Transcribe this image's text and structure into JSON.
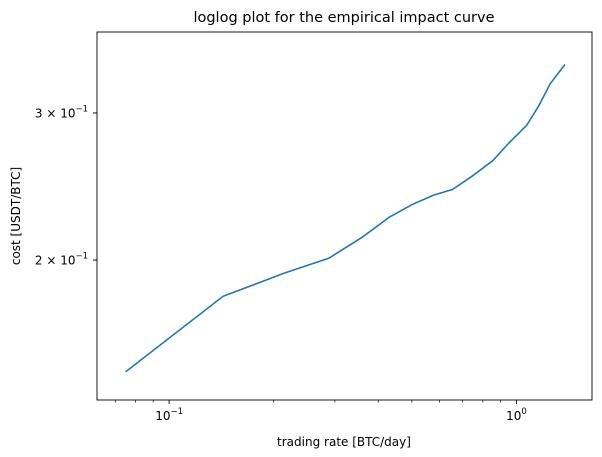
{
  "chart_data": {
    "type": "line",
    "title": "loglog plot for the empirical impact curve",
    "xlabel": "trading rate [BTC/day]",
    "ylabel": "cost [USDT/BTC]",
    "xscale": "log",
    "yscale": "log",
    "xlim": [
      0.062,
      1.65
    ],
    "ylim": [
      0.136,
      0.375
    ],
    "grid": false,
    "legend": "none",
    "line_color": "#1f77b4",
    "x_ticks": [
      {
        "value": 0.1,
        "label": "10",
        "exp": "−1"
      },
      {
        "value": 1.0,
        "label": "10",
        "exp": "0"
      }
    ],
    "y_ticks": [
      {
        "value": 0.2,
        "label": "2 × 10",
        "exp": "−1"
      },
      {
        "value": 0.3,
        "label": "3 × 10",
        "exp": "−1"
      }
    ],
    "series": [
      {
        "x": [
          0.075,
          0.143,
          0.215,
          0.288,
          0.36,
          0.43,
          0.5,
          0.575,
          0.655,
          0.745,
          0.855,
          0.95,
          1.07,
          1.16,
          1.25,
          1.38
        ],
        "y": [
          0.147,
          0.181,
          0.193,
          0.201,
          0.213,
          0.225,
          0.233,
          0.239,
          0.243,
          0.252,
          0.263,
          0.276,
          0.29,
          0.306,
          0.325,
          0.343
        ]
      }
    ]
  }
}
